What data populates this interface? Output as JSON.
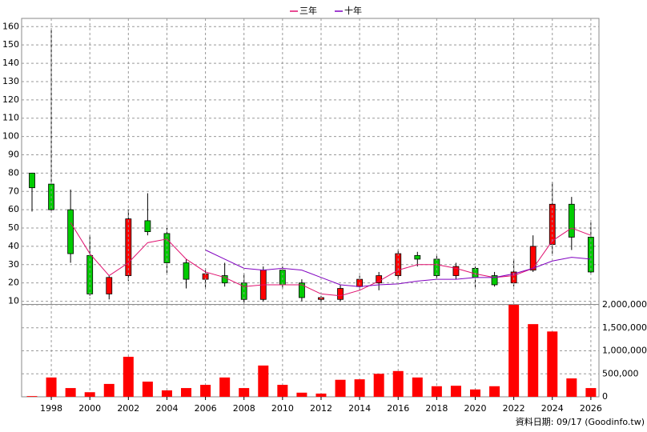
{
  "chart_data": [
    {
      "type": "candlestick",
      "x": [
        1997,
        1998,
        1999,
        2000,
        2001,
        2002,
        2003,
        2004,
        2005,
        2006,
        2007,
        2008,
        2009,
        2010,
        2011,
        2012,
        2013,
        2014,
        2015,
        2016,
        2017,
        2018,
        2019,
        2020,
        2021,
        2022,
        2023,
        2024,
        2025,
        2026
      ],
      "open": [
        80,
        74,
        60,
        35,
        14,
        24,
        54,
        47,
        31,
        22,
        24,
        20,
        11,
        27,
        20,
        11,
        11,
        18,
        20,
        24,
        35,
        33,
        24,
        28,
        24,
        20,
        27,
        41,
        63,
        45
      ],
      "high": [
        80,
        159,
        71,
        46,
        24,
        60,
        69,
        50,
        33,
        28,
        31,
        25,
        29,
        29,
        22,
        13,
        19,
        24,
        26,
        38,
        37,
        35,
        31,
        29,
        26,
        33,
        46,
        75,
        67,
        53
      ],
      "low": [
        59,
        59,
        31,
        13,
        11,
        21,
        46,
        25,
        17,
        17,
        18,
        9,
        10,
        17,
        10,
        10,
        10,
        16,
        16,
        22,
        29,
        22,
        22,
        17,
        18,
        18,
        26,
        36,
        38,
        25
      ],
      "close": [
        72,
        60,
        36,
        14,
        23,
        55,
        48,
        31,
        22,
        25,
        20,
        11,
        27,
        19,
        12,
        12,
        17,
        22,
        24,
        36,
        33,
        24,
        29,
        23,
        19,
        26,
        40,
        63,
        45,
        26
      ],
      "up_color": "#ff0000",
      "down_color": "#00cc00",
      "series": [
        {
          "name": "三年",
          "color": "#e0106f",
          "values": [
            null,
            null,
            53,
            36,
            24,
            31,
            42,
            44,
            33,
            26,
            23,
            18,
            19,
            19,
            19,
            14,
            13,
            16,
            21,
            27,
            30,
            30,
            28,
            25,
            23,
            24,
            28,
            43,
            50,
            46
          ]
        },
        {
          "name": "十年",
          "color": "#8000c0",
          "values": [
            null,
            null,
            null,
            null,
            null,
            null,
            null,
            null,
            null,
            38,
            33,
            28,
            27,
            28,
            27,
            23,
            19,
            18,
            19,
            19.5,
            21,
            22,
            22,
            23,
            23,
            25,
            28,
            32,
            34,
            33
          ]
        }
      ],
      "xlim": [
        1996.46,
        2026.42
      ],
      "ylim": [
        8.5,
        164.5
      ],
      "yticks": [
        10,
        20,
        30,
        40,
        50,
        60,
        70,
        80,
        90,
        100,
        110,
        120,
        130,
        140,
        150,
        160
      ],
      "grid": true
    },
    {
      "type": "bar",
      "x": [
        1997,
        1998,
        1999,
        2000,
        2001,
        2002,
        2003,
        2004,
        2005,
        2006,
        2007,
        2008,
        2009,
        2010,
        2011,
        2012,
        2013,
        2014,
        2015,
        2016,
        2017,
        2018,
        2019,
        2020,
        2021,
        2022,
        2023,
        2024,
        2025,
        2026
      ],
      "values": [
        15000,
        420000,
        190000,
        100000,
        280000,
        870000,
        330000,
        140000,
        190000,
        260000,
        420000,
        190000,
        680000,
        260000,
        90000,
        70000,
        370000,
        380000,
        500000,
        560000,
        420000,
        230000,
        240000,
        160000,
        230000,
        2000000,
        1580000,
        1420000,
        400000,
        190000
      ],
      "color": "#ff0000",
      "xlim": [
        1996.46,
        2026.42
      ],
      "ylim": [
        0,
        2000000
      ],
      "yticks": [
        0,
        {
          "value": 500000,
          "label": "500,000"
        },
        {
          "value": 1000000,
          "label": "1,000,000"
        },
        {
          "value": 1500000,
          "label": "1,500,000"
        },
        {
          "value": 2000000,
          "label": "2,000,000"
        }
      ],
      "xticks": [
        1998,
        2000,
        2002,
        2004,
        2006,
        2008,
        2010,
        2012,
        2014,
        2016,
        2018,
        2020,
        2022,
        2024,
        2026
      ],
      "note": "資料日期: 09/17 (Goodinfo.tw)",
      "grid": true
    }
  ]
}
